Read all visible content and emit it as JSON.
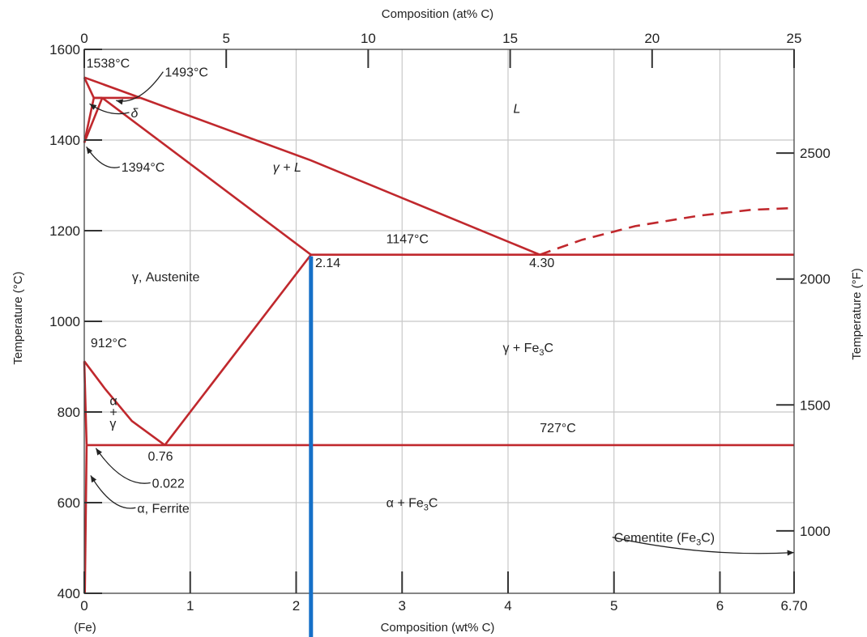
{
  "chart_data": {
    "type": "line",
    "title": "",
    "xlabel": "Composition (wt% C)",
    "x2label": "Composition (at% C)",
    "ylabel": "Temperature (°C)",
    "y2label": "Temperature (°F)",
    "xlim": [
      0,
      6.7
    ],
    "ylim": [
      400,
      1600
    ],
    "grid": true,
    "x_ticks": [
      "0",
      "1",
      "2",
      "3",
      "4",
      "5",
      "6",
      "6.70"
    ],
    "x_tick_values": [
      0,
      1,
      2,
      3,
      4,
      5,
      6,
      6.7
    ],
    "x_sublabel": "(Fe)",
    "y_ticks": [
      "400",
      "600",
      "800",
      "1000",
      "1200",
      "1400",
      "1600"
    ],
    "y_tick_values": [
      400,
      600,
      800,
      1000,
      1200,
      1400,
      1600
    ],
    "x2_ticks": [
      "0",
      "5",
      "10",
      "15",
      "20",
      "25"
    ],
    "x2_tick_values": [
      0,
      5,
      10,
      15,
      20,
      25
    ],
    "y2_ticks": [
      "1000",
      "1500",
      "2000",
      "2500"
    ],
    "y2_tick_values": [
      1000,
      1500,
      2000,
      2500
    ],
    "series": [
      {
        "key": "liquidus_left",
        "x": [
          0,
          0.53
        ],
        "y": [
          1538,
          1493
        ]
      },
      {
        "key": "liquidus_main",
        "x": [
          0.53,
          2.14,
          4.3
        ],
        "y": [
          1493,
          1355,
          1147
        ]
      },
      {
        "key": "liquidus_cementite",
        "x": [
          4.3,
          4.7,
          5.2,
          5.8,
          6.3,
          6.7
        ],
        "y": [
          1147,
          1180,
          1210,
          1233,
          1246,
          1250
        ],
        "dashed": true
      },
      {
        "key": "delta_solidus",
        "x": [
          0,
          0.09
        ],
        "y": [
          1538,
          1493
        ]
      },
      {
        "key": "peritectic_line",
        "x": [
          0.09,
          0.53
        ],
        "y": [
          1493,
          1493
        ]
      },
      {
        "key": "delta_gamma_upper",
        "x": [
          0.09,
          0.17
        ],
        "y": [
          1493,
          1493
        ]
      },
      {
        "key": "delta_solvus",
        "x": [
          0.09,
          0
        ],
        "y": [
          1493,
          1394
        ]
      },
      {
        "key": "gamma_delta",
        "x": [
          0,
          0.17
        ],
        "y": [
          1394,
          1493
        ]
      },
      {
        "key": "austenite_solidus",
        "x": [
          0.17,
          2.14
        ],
        "y": [
          1493,
          1147
        ]
      },
      {
        "key": "eutectic_line",
        "x": [
          2.14,
          6.7
        ],
        "y": [
          1147,
          1147
        ]
      },
      {
        "key": "acm_line",
        "x": [
          0.76,
          2.14
        ],
        "y": [
          727,
          1147
        ]
      },
      {
        "key": "a3_line",
        "x": [
          0,
          0.2,
          0.45,
          0.76
        ],
        "y": [
          912,
          850,
          780,
          727
        ]
      },
      {
        "key": "alpha_gamma_lower",
        "x": [
          0,
          0.022
        ],
        "y": [
          912,
          727
        ]
      },
      {
        "key": "eutectoid_line",
        "x": [
          0.022,
          6.7
        ],
        "y": [
          727,
          727
        ]
      },
      {
        "key": "ferrite_solvus",
        "x": [
          0.022,
          0.005
        ],
        "y": [
          727,
          400
        ]
      }
    ],
    "annotations": [
      {
        "text": "1538°C",
        "x": 0.02,
        "y": 1560
      },
      {
        "text": "1493°C",
        "x": 0.76,
        "y": 1540,
        "arrow_to": [
          0.3,
          1487
        ]
      },
      {
        "text": "δ",
        "x": 0.44,
        "y": 1450,
        "arrow_to": [
          0.05,
          1480
        ],
        "italic": true
      },
      {
        "text": "1394°C",
        "x": 0.35,
        "y": 1330,
        "arrow_to": [
          0.02,
          1385
        ]
      },
      {
        "text": "L",
        "x": 4.05,
        "y": 1460,
        "italic": true
      },
      {
        "text": "γ + L",
        "x": 1.78,
        "y": 1330,
        "italic": true
      },
      {
        "text": "1147°C",
        "x": 2.85,
        "y": 1172
      },
      {
        "text": "2.14",
        "x": 2.18,
        "y": 1120
      },
      {
        "text": "4.30",
        "x": 4.2,
        "y": 1120
      },
      {
        "text": "γ, Austenite",
        "x": 0.45,
        "y": 1088
      },
      {
        "text": "912°C",
        "x": 0.06,
        "y": 943
      },
      {
        "text": "γ + Fe3C",
        "x": 3.95,
        "y": 932
      },
      {
        "text": "α",
        "x": 0.24,
        "y": 815
      },
      {
        "text": "+",
        "x": 0.24,
        "y": 790
      },
      {
        "text": "γ",
        "x": 0.24,
        "y": 765
      },
      {
        "text": "727°C",
        "x": 4.3,
        "y": 755
      },
      {
        "text": "0.76",
        "x": 0.6,
        "y": 693
      },
      {
        "text": "0.022",
        "x": 0.64,
        "y": 633,
        "arrow_to": [
          0.11,
          720
        ]
      },
      {
        "text": "α, Ferrite",
        "x": 0.5,
        "y": 578,
        "arrow_to": [
          0.06,
          660
        ]
      },
      {
        "text": "α + Fe3C",
        "x": 2.85,
        "y": 590
      },
      {
        "text": "Cementite (Fe3C)",
        "x": 5.0,
        "y": 513,
        "arrow_to": [
          6.7,
          490
        ]
      }
    ],
    "marker_line": {
      "x": 2.14,
      "color": "#1570c8"
    }
  }
}
